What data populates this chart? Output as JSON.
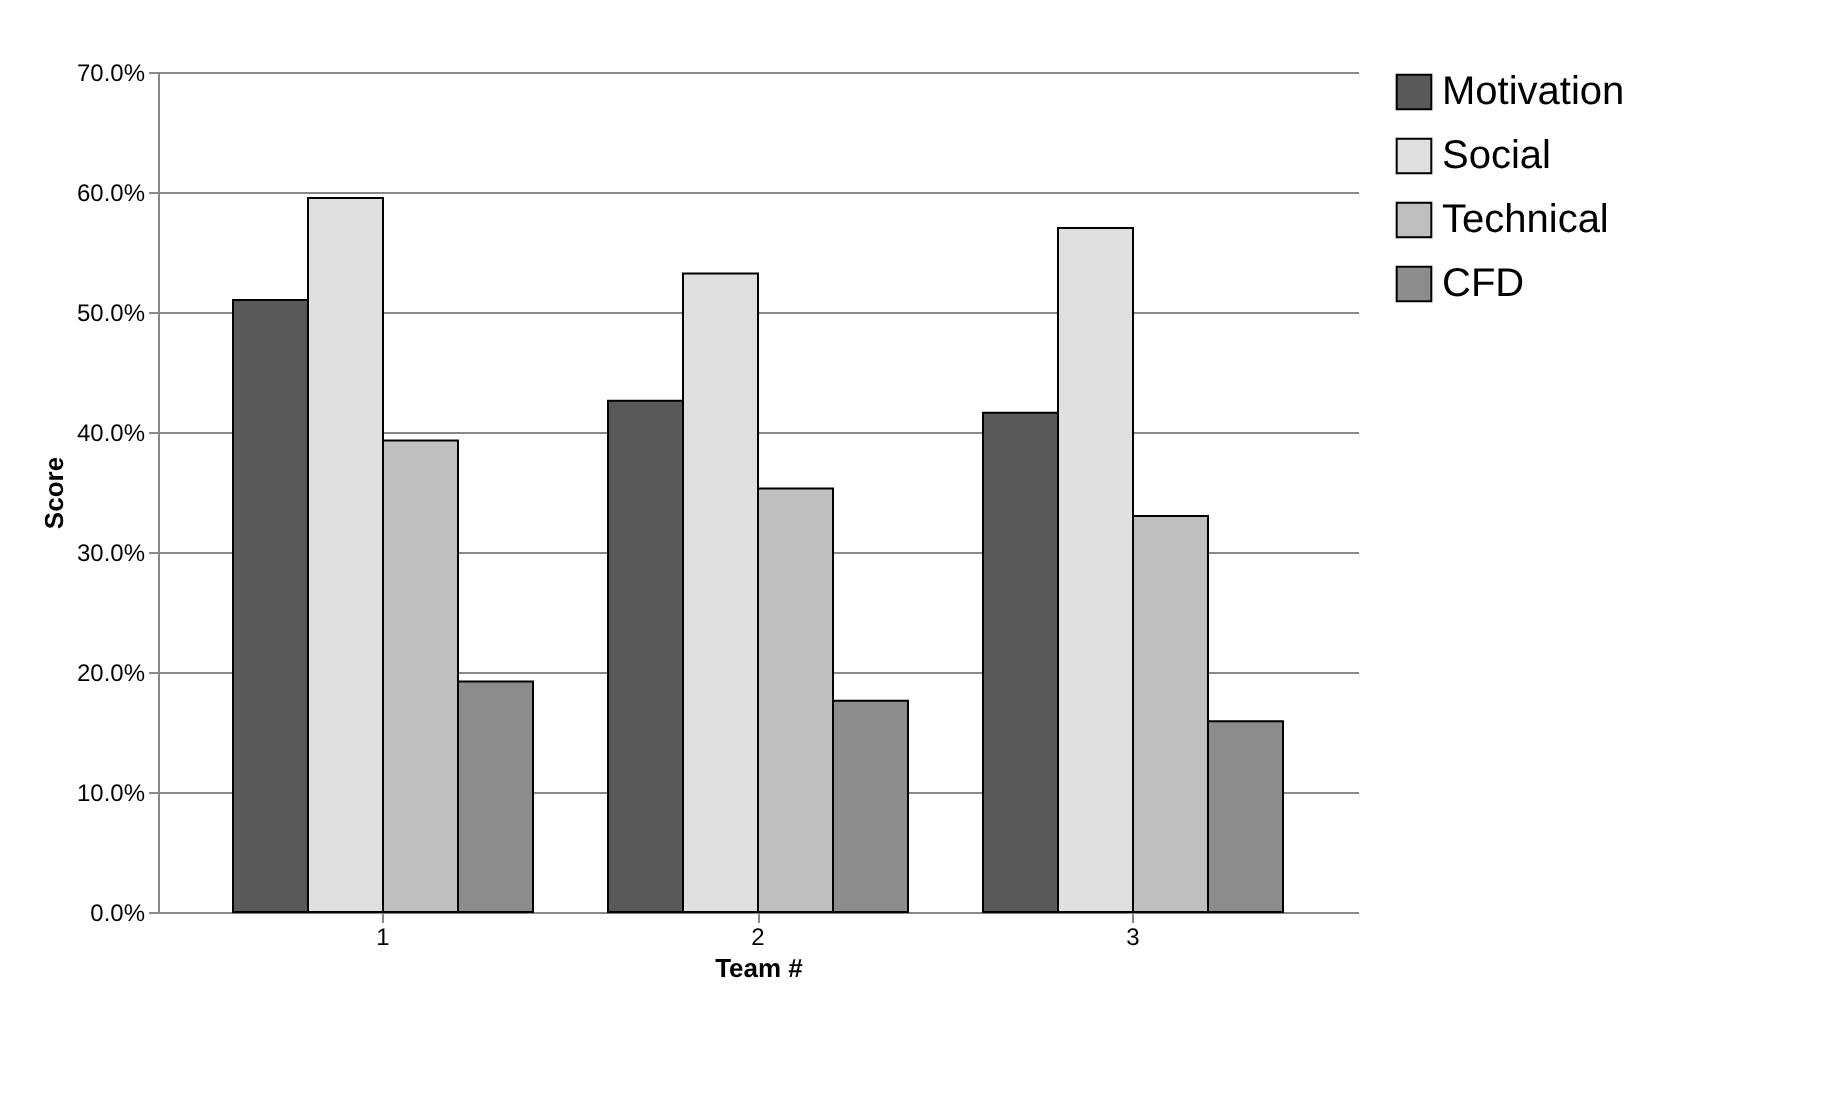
{
  "chart_data": {
    "type": "bar",
    "xlabel": "Team #",
    "ylabel": "Score",
    "categories": [
      "1",
      "2",
      "3"
    ],
    "series": [
      {
        "name": "Motivation",
        "color": "#595959",
        "values": [
          51.0,
          42.6,
          41.6
        ]
      },
      {
        "name": "Social",
        "color": "#e0e0e0",
        "values": [
          59.5,
          53.2,
          57.0
        ]
      },
      {
        "name": "Technical",
        "color": "#bfbfbf",
        "values": [
          39.3,
          35.3,
          33.0
        ]
      },
      {
        "name": "CFD",
        "color": "#8c8c8c",
        "values": [
          19.2,
          17.6,
          15.9
        ]
      }
    ],
    "ylim": [
      0,
      70
    ],
    "yticks": [
      {
        "value": 0,
        "label": "0.0%"
      },
      {
        "value": 10,
        "label": "10.0%"
      },
      {
        "value": 20,
        "label": "20.0%"
      },
      {
        "value": 30,
        "label": "30.0%"
      },
      {
        "value": 40,
        "label": "40.0%"
      },
      {
        "value": 50,
        "label": "50.0%"
      },
      {
        "value": 60,
        "label": "60.0%"
      },
      {
        "value": 70,
        "label": "70.0%"
      }
    ],
    "grid": "y",
    "legend": "right"
  }
}
